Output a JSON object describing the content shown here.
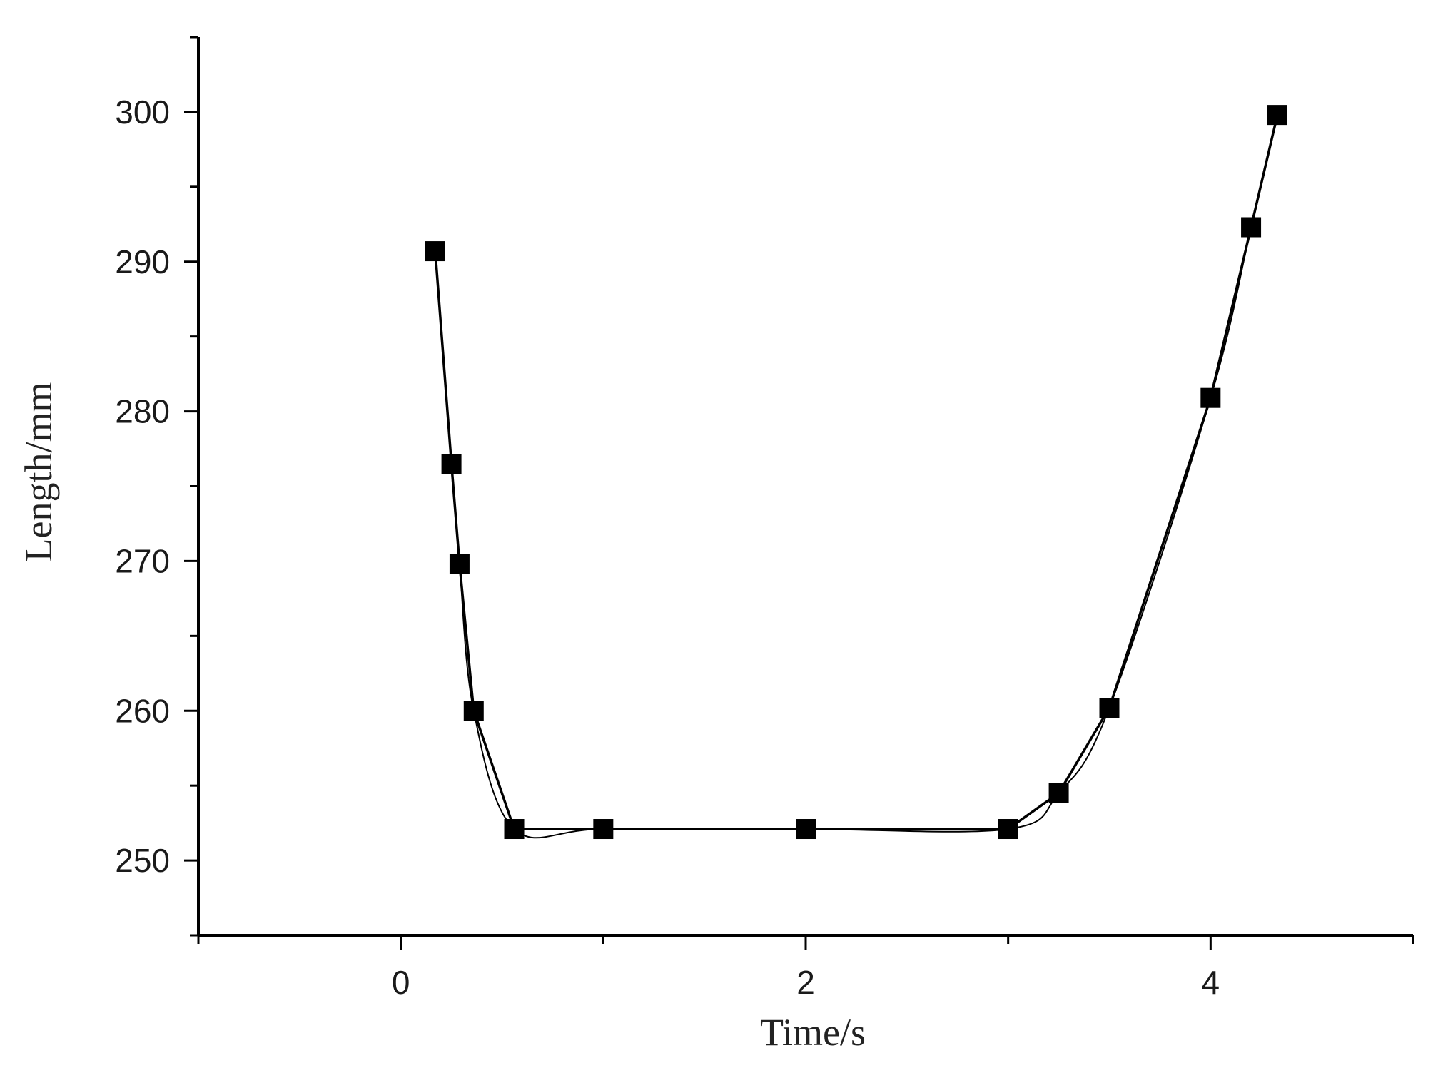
{
  "chart_data": {
    "type": "scatter",
    "title": "",
    "xlabel": "Time/s",
    "ylabel": "Length/mm",
    "xlim": [
      -1,
      5
    ],
    "ylim": [
      245,
      305
    ],
    "x_ticks": [
      0,
      2,
      4
    ],
    "x_tick_labels": [
      "0",
      "2",
      "4"
    ],
    "x_minor_ticks": [
      -1,
      1,
      3,
      5
    ],
    "y_ticks": [
      250,
      260,
      270,
      280,
      290,
      300
    ],
    "y_tick_labels": [
      "250",
      "260",
      "270",
      "280",
      "290",
      "300"
    ],
    "y_minor_ticks": [
      245,
      255,
      265,
      275,
      285,
      295,
      305
    ],
    "grid": false,
    "legend": false,
    "series": [
      {
        "marker": "square",
        "connect_points": true,
        "fitted_curve": true,
        "color": "#000000",
        "x": [
          0.17,
          0.25,
          0.29,
          0.36,
          0.56,
          1.0,
          2.0,
          3.0,
          3.25,
          3.5,
          4.0,
          4.2,
          4.33
        ],
        "y": [
          290.7,
          276.5,
          269.8,
          260.0,
          252.1,
          252.1,
          252.1,
          252.1,
          254.5,
          260.2,
          280.9,
          292.3,
          299.8
        ]
      }
    ]
  }
}
